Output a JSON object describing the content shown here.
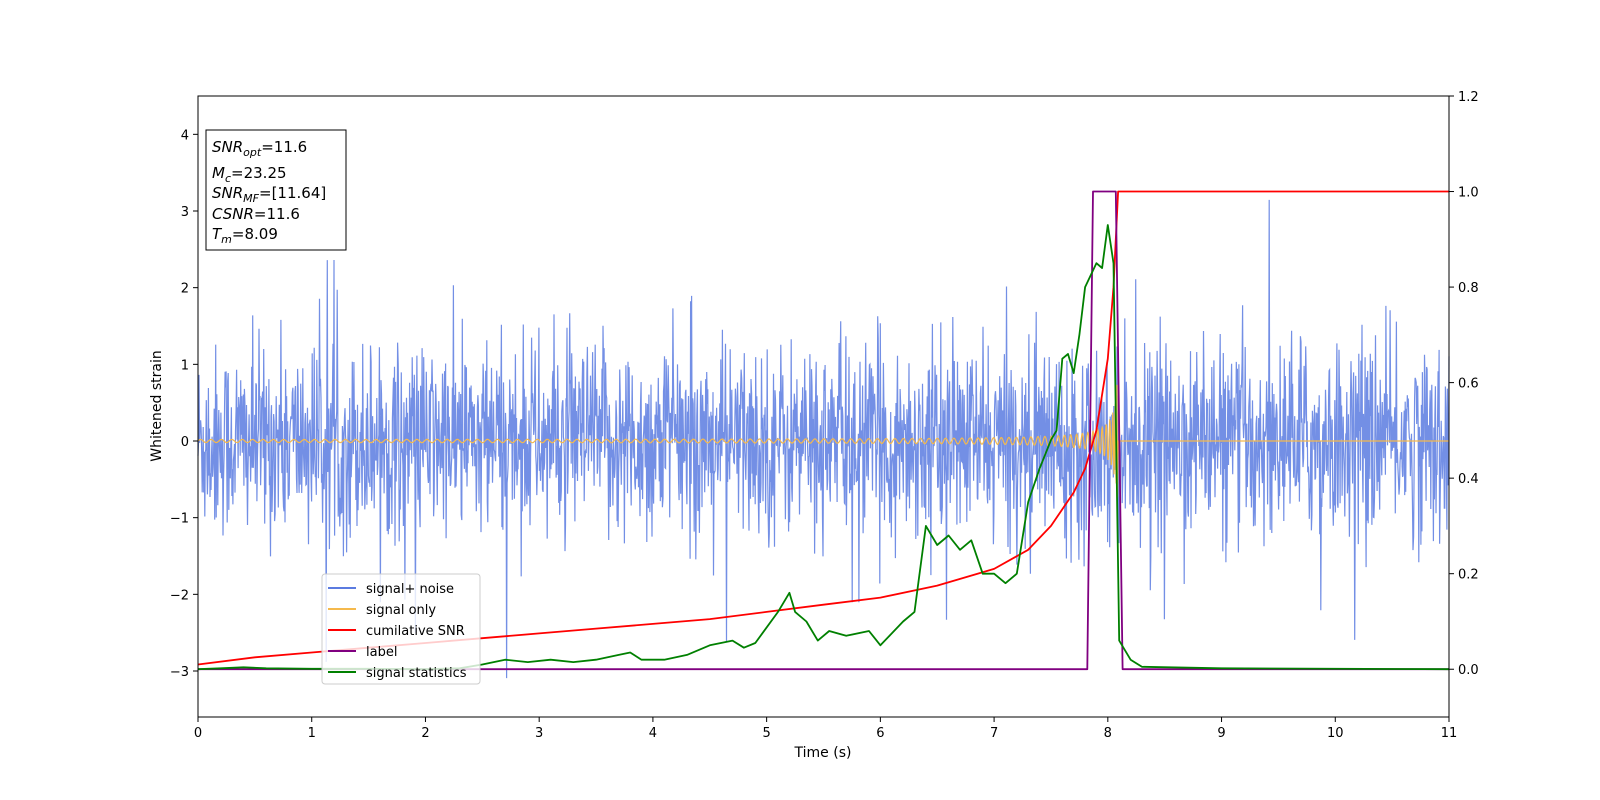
{
  "chart_data": {
    "type": "line",
    "title": "",
    "xlabel": "Time (s)",
    "ylabel": "Whitened strain",
    "xlim": [
      0,
      11
    ],
    "ylim_left": [
      -3.6,
      4.5
    ],
    "ylim_right": [
      -0.1,
      1.2
    ],
    "x_ticks": [
      "0",
      "1",
      "2",
      "3",
      "4",
      "5",
      "6",
      "7",
      "8",
      "9",
      "10",
      "11"
    ],
    "y_ticks_left": [
      "−3",
      "−2",
      "−1",
      "0",
      "1",
      "2",
      "3",
      "4"
    ],
    "y_ticks_right": [
      "0.0",
      "0.2",
      "0.4",
      "0.6",
      "0.8",
      "1.0",
      "1.2"
    ],
    "grid": false,
    "legend_position": "lower-left",
    "annotation": {
      "lines": [
        {
          "var": "SNR",
          "sub": "opt",
          "value": "=11.6"
        },
        {
          "var": "M",
          "sub": "c",
          "value": "=23.25"
        },
        {
          "var": "SNR",
          "sub": "MF",
          "value": "=[11.64]"
        },
        {
          "var": "CSNR",
          "sub": "",
          "value": "=11.6"
        },
        {
          "var": "T",
          "sub": "m",
          "value": "=8.09"
        }
      ]
    },
    "noise_summary": {
      "typical_abs_max": 1.3,
      "peak_max": 3.42,
      "peak_min": -3.2
    },
    "chirp": {
      "merger_time": 8.09,
      "peak_amplitude": 1.05,
      "base_freq": 9,
      "freq_growth": 6
    },
    "series": [
      {
        "name": "signal+ noise",
        "color": "#5b7be0",
        "axis": "left",
        "kind": "noise"
      },
      {
        "name": "signal only",
        "color": "#f5b94c",
        "axis": "left",
        "kind": "chirp"
      },
      {
        "name": "cumilative SNR",
        "color": "#ff0000",
        "axis": "right",
        "x": [
          0,
          0.5,
          1,
          1.5,
          2,
          2.5,
          3,
          3.5,
          4,
          4.5,
          5,
          5.5,
          6,
          6.5,
          7,
          7.3,
          7.5,
          7.7,
          7.8,
          7.9,
          8.0,
          8.05,
          8.09,
          8.1,
          9,
          10,
          11
        ],
        "y": [
          0.01,
          0.025,
          0.035,
          0.045,
          0.055,
          0.065,
          0.075,
          0.085,
          0.095,
          0.105,
          0.12,
          0.135,
          0.15,
          0.175,
          0.21,
          0.25,
          0.3,
          0.37,
          0.42,
          0.5,
          0.65,
          0.8,
          1.0,
          1.0,
          1.0,
          1.0,
          1.0
        ]
      },
      {
        "name": "label",
        "color": "#800080",
        "axis": "right",
        "x": [
          0,
          7.82,
          7.87,
          8.07,
          8.13,
          11
        ],
        "y": [
          0,
          0,
          1,
          1,
          0,
          0
        ]
      },
      {
        "name": "signal statistics",
        "color": "#008000",
        "axis": "right",
        "x": [
          0,
          0.2,
          0.4,
          0.6,
          1.0,
          1.5,
          2.0,
          2.3,
          2.5,
          2.7,
          2.9,
          3.1,
          3.3,
          3.5,
          3.7,
          3.8,
          3.9,
          4.1,
          4.3,
          4.5,
          4.7,
          4.8,
          4.9,
          5.1,
          5.2,
          5.25,
          5.35,
          5.45,
          5.55,
          5.7,
          5.9,
          6.0,
          6.2,
          6.3,
          6.4,
          6.5,
          6.6,
          6.7,
          6.8,
          6.9,
          7.0,
          7.1,
          7.2,
          7.3,
          7.4,
          7.5,
          7.55,
          7.6,
          7.65,
          7.7,
          7.75,
          7.8,
          7.9,
          7.95,
          8.0,
          8.05,
          8.1,
          8.2,
          8.3,
          9,
          11
        ],
        "y": [
          0,
          0.002,
          0.004,
          0.002,
          0.001,
          0.001,
          0.0,
          0.002,
          0.01,
          0.02,
          0.015,
          0.02,
          0.015,
          0.02,
          0.03,
          0.035,
          0.02,
          0.02,
          0.03,
          0.05,
          0.06,
          0.045,
          0.055,
          0.12,
          0.16,
          0.12,
          0.1,
          0.06,
          0.08,
          0.07,
          0.08,
          0.05,
          0.1,
          0.12,
          0.3,
          0.26,
          0.28,
          0.25,
          0.27,
          0.2,
          0.2,
          0.18,
          0.2,
          0.35,
          0.42,
          0.48,
          0.5,
          0.65,
          0.66,
          0.62,
          0.7,
          0.8,
          0.85,
          0.84,
          0.93,
          0.85,
          0.06,
          0.02,
          0.005,
          0.002,
          0.0
        ]
      }
    ]
  }
}
